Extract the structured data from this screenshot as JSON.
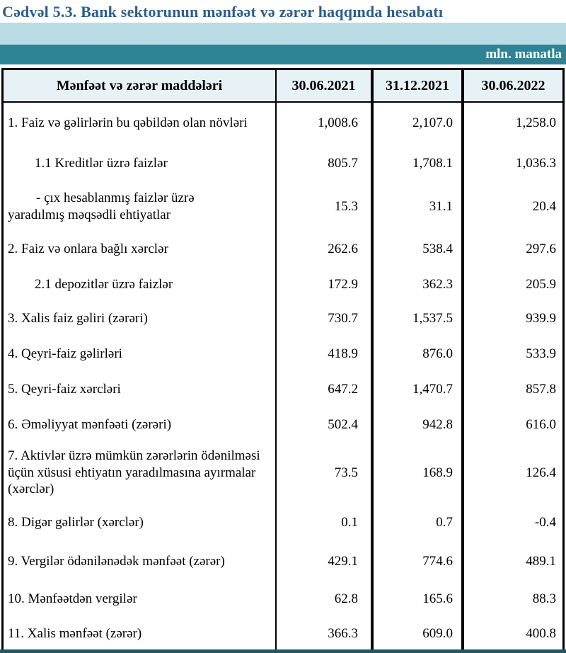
{
  "page_title": "Cədvəl 5.3. Bank sektorunun mənfəət və zərər haqqında hesabatı",
  "unit_label": "mln. manatla",
  "colors": {
    "title_text": "#2b5f8e",
    "light_band": "#b9dce4",
    "teal_band": "#2e8496",
    "header_bg": "#e7f2f7",
    "bottom_bar": "#1d5967",
    "table_border": "#000000"
  },
  "table": {
    "headers": [
      "Mənfəət və zərər maddələri",
      "30.06.2021",
      "31.12.2021",
      "30.06.2022"
    ],
    "rows": [
      {
        "label": "1. Faiz və gəlirlərin bu qəbildən olan növləri",
        "values": [
          "1,008.6",
          "2,107.0",
          "1,258.0"
        ]
      },
      {
        "label": "1.1 Kreditlər üzrə faizlər",
        "values": [
          "805.7",
          "1,708.1",
          "1,036.3"
        ]
      },
      {
        "label": "-  çıx hesablanmış faizlər üzrə\nyaradılmış məqsədli ehtiyatlar",
        "values": [
          "15.3",
          "31.1",
          "20.4"
        ]
      },
      {
        "label": "2. Faiz və onlara bağlı xərclər",
        "values": [
          "262.6",
          "538.4",
          "297.6"
        ]
      },
      {
        "label": "2.1 depozitlər üzrə faizlər",
        "values": [
          "172.9",
          "362.3",
          "205.9"
        ]
      },
      {
        "label": "3. Xalis faiz gəliri (zərəri)",
        "values": [
          "730.7",
          "1,537.5",
          "939.9"
        ]
      },
      {
        "label": "4. Qeyri-faiz gəlirləri",
        "values": [
          "418.9",
          "876.0",
          "533.9"
        ]
      },
      {
        "label": "5. Qeyri-faiz xərcləri",
        "values": [
          "647.2",
          "1,470.7",
          "857.8"
        ]
      },
      {
        "label": "6. Əməliyyat mənfəəti (zərəri)",
        "values": [
          "502.4",
          "942.8",
          "616.0"
        ]
      },
      {
        "label": "7. Aktivlər üzrə mümkün zərərlərin ödənilməsi üçün xüsusi ehtiyatın yaradılmasına ayırmalar (xərclər)",
        "values": [
          "73.5",
          "168.9",
          "126.4"
        ]
      },
      {
        "label": "8. Digər gəlirlər (xərclər)",
        "values": [
          "0.1",
          "0.7",
          "-0.4"
        ]
      },
      {
        "label": "9. Vergilər ödənilənədək mənfəət (zərər)",
        "values": [
          "429.1",
          "774.6",
          "489.1"
        ]
      },
      {
        "label": "10. Mənfəətdən vergilər",
        "values": [
          "62.8",
          "165.6",
          "88.3"
        ]
      },
      {
        "label": "11. Xalis mənfəət (zərər)",
        "values": [
          "366.3",
          "609.0",
          "400.8"
        ]
      }
    ]
  }
}
